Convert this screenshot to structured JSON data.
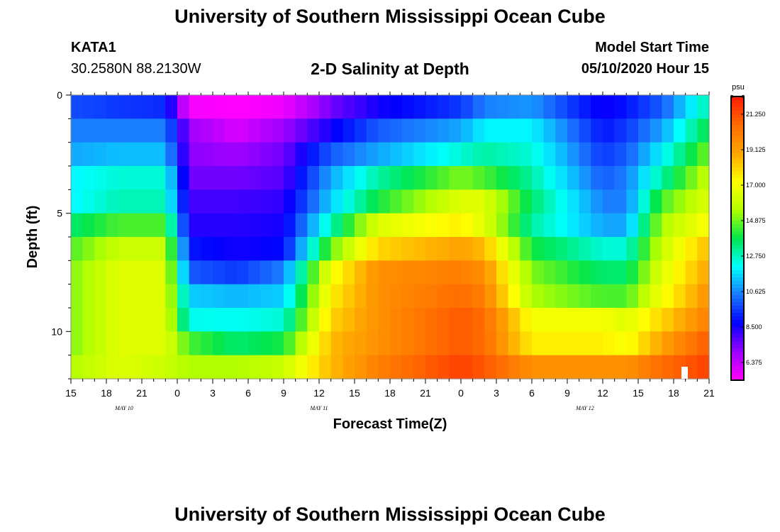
{
  "header": {
    "title": "University of Southern Mississippi Ocean Cube",
    "station": "KATA1",
    "coordinates": "30.2580N 88.2130W",
    "plot_title": "2-D Salinity at Depth",
    "model_start_label": "Model Start Time",
    "model_start_value": "05/10/2020 Hour 15"
  },
  "footer": {
    "title": "University of Southern Mississippi Ocean Cube"
  },
  "colors": {
    "scale": [
      "#ff00ff",
      "#9e00ff",
      "#0000ff",
      "#1a78ff",
      "#00ffff",
      "#00e64d",
      "#b3ff00",
      "#ffff00",
      "#ffa500",
      "#ff6a00",
      "#ff1a00"
    ]
  },
  "chart_data": {
    "type": "heatmap",
    "title": "2-D Salinity at Depth",
    "xlabel": "Forecast Time(Z)",
    "ylabel": "Depth (ft)",
    "x_range": [
      0,
      54
    ],
    "y_range": [
      0,
      12
    ],
    "y_ticks": [
      0,
      5,
      10
    ],
    "x_tick_labels": [
      "15",
      "18",
      "21",
      "0",
      "3",
      "6",
      "9",
      "12",
      "15",
      "18",
      "21",
      "0",
      "3",
      "6",
      "9",
      "12",
      "15",
      "18",
      "21"
    ],
    "date_labels": [
      {
        "text": "MAY 10",
        "hour": 4.5
      },
      {
        "text": "MAY 11",
        "hour": 21
      },
      {
        "text": "MAY 12",
        "hour": 43.5
      }
    ],
    "colorbar": {
      "unit": "psu",
      "min": 5.3125,
      "max": 22.3125,
      "labels": [
        "21.250",
        "19.125",
        "17.000",
        "14.875",
        "12.750",
        "10.625",
        "8.500",
        "6.375"
      ]
    },
    "depth_rows": [
      0.5,
      1.5,
      2.5,
      3.5,
      4.5,
      5.5,
      6.5,
      7.5,
      8.5,
      9.5,
      10.5,
      11.5
    ],
    "time_keys": [
      0,
      4,
      8,
      10,
      14,
      18,
      22,
      26,
      33,
      35,
      39,
      45,
      47,
      50,
      54
    ],
    "salinity_keys": [
      [
        9.8,
        9.5,
        9.3,
        5.5,
        5.3,
        5.6,
        7.5,
        8.5,
        9.5,
        10.5,
        10.8,
        8.5,
        9.0,
        10.0,
        13.0
      ],
      [
        10.5,
        10.5,
        10.5,
        7.0,
        6.0,
        7.0,
        8.5,
        10.0,
        11.0,
        12.0,
        12.0,
        9.0,
        9.5,
        11.0,
        14.0
      ],
      [
        11.0,
        11.3,
        11.3,
        7.2,
        7.0,
        7.5,
        10.0,
        11.0,
        12.5,
        13.0,
        12.5,
        9.5,
        10.0,
        12.0,
        15.0
      ],
      [
        12.0,
        12.5,
        12.5,
        7.5,
        7.5,
        7.8,
        11.0,
        13.0,
        15.0,
        14.5,
        13.0,
        10.0,
        10.5,
        13.0,
        16.0
      ],
      [
        12.0,
        12.8,
        12.8,
        8.0,
        8.0,
        8.2,
        11.5,
        14.0,
        16.5,
        16.5,
        13.5,
        10.5,
        10.5,
        14.5,
        16.5
      ],
      [
        13.5,
        14.5,
        14.5,
        8.3,
        8.3,
        8.5,
        12.8,
        16.5,
        17.5,
        16.5,
        13.0,
        11.0,
        11.0,
        15.5,
        17.2
      ],
      [
        14.5,
        16.0,
        16.0,
        9.0,
        8.5,
        8.8,
        14.8,
        18.0,
        19.0,
        18.5,
        14.0,
        12.5,
        12.5,
        16.0,
        18.5
      ],
      [
        15.0,
        16.5,
        16.5,
        10.0,
        9.5,
        10.5,
        17.0,
        19.5,
        20.0,
        19.5,
        15.0,
        13.5,
        13.5,
        16.5,
        19.0
      ],
      [
        15.0,
        16.5,
        16.5,
        11.5,
        11.2,
        11.5,
        17.5,
        19.5,
        20.5,
        20.0,
        15.5,
        14.5,
        14.5,
        17.0,
        19.5
      ],
      [
        15.0,
        16.5,
        16.5,
        12.3,
        12.2,
        12.5,
        18.0,
        19.5,
        21.0,
        20.5,
        17.0,
        17.0,
        16.5,
        18.0,
        20.0
      ],
      [
        15.0,
        16.5,
        16.5,
        14.5,
        13.5,
        14.0,
        18.5,
        19.5,
        21.0,
        20.5,
        17.5,
        17.5,
        17.0,
        19.0,
        21.0
      ],
      [
        15.5,
        16.5,
        16.0,
        15.5,
        15.5,
        16.0,
        18.5,
        20.0,
        21.5,
        21.0,
        19.5,
        19.5,
        19.5,
        20.5,
        21.5
      ]
    ]
  }
}
